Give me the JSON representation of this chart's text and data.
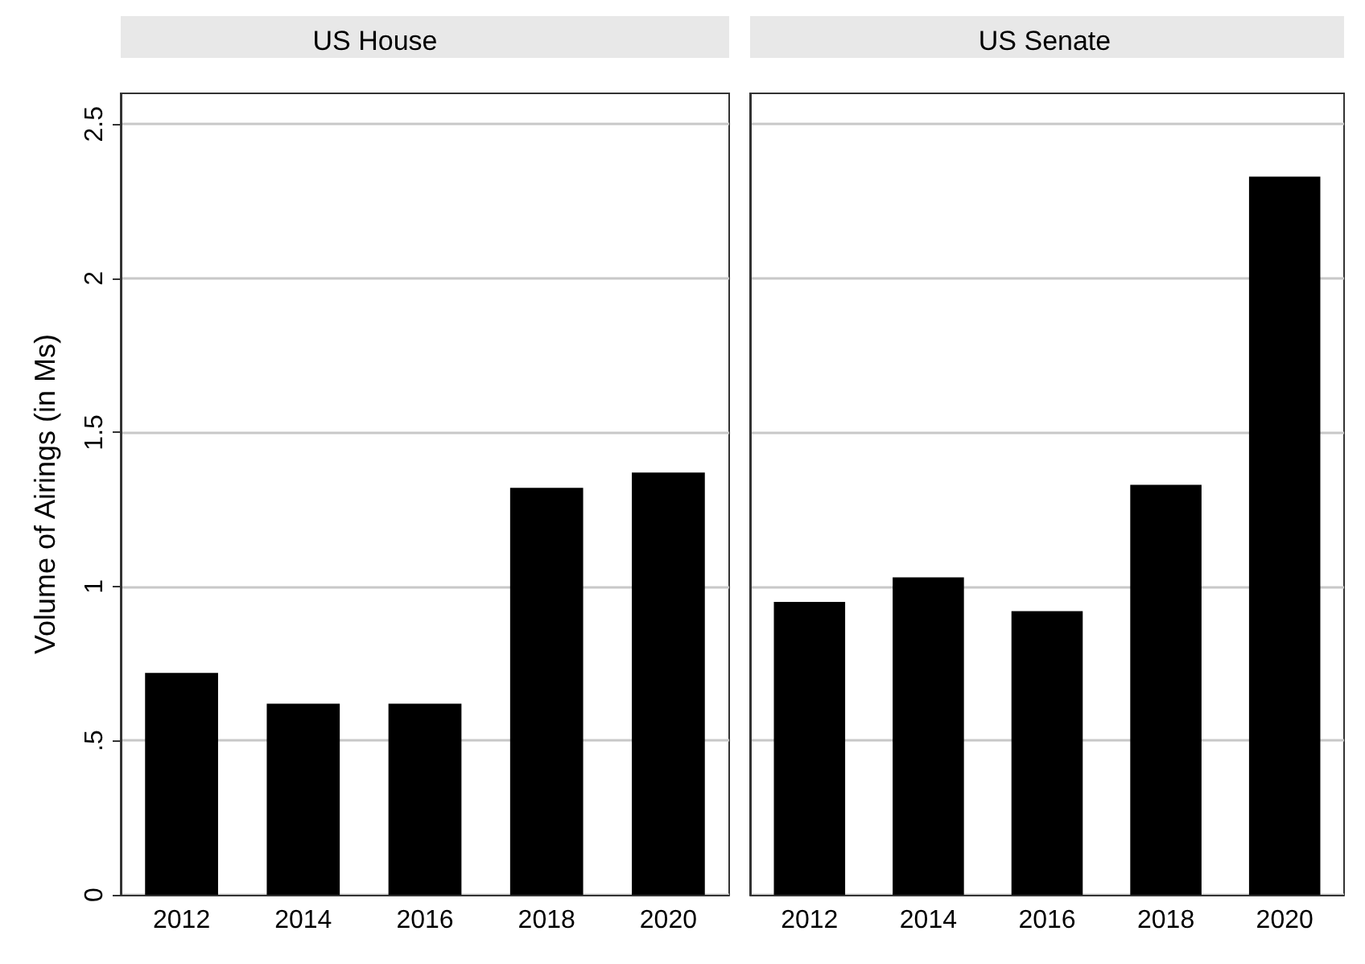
{
  "chart_data": [
    {
      "type": "bar",
      "title": "US House",
      "ylabel": "Volume of Airings (in Ms)",
      "categories": [
        "2012",
        "2014",
        "2016",
        "2018",
        "2020"
      ],
      "values": [
        0.72,
        0.62,
        0.62,
        1.32,
        1.37
      ],
      "color": "#000000",
      "ylim": [
        0,
        2.6
      ],
      "yticks": [
        0,
        {
          "value": 0.5,
          "label": ".5"
        },
        1,
        1.5,
        2,
        2.5
      ],
      "grid": "y"
    },
    {
      "type": "bar",
      "title": "US Senate",
      "categories": [
        "2012",
        "2014",
        "2016",
        "2018",
        "2020"
      ],
      "values": [
        0.95,
        1.03,
        0.92,
        1.33,
        2.33
      ],
      "color": "#000000",
      "ylim": [
        0,
        2.6
      ],
      "yticks": [
        0,
        0.5,
        1,
        1.5,
        2,
        2.5
      ],
      "grid": "y",
      "tick_labels": "x"
    }
  ]
}
